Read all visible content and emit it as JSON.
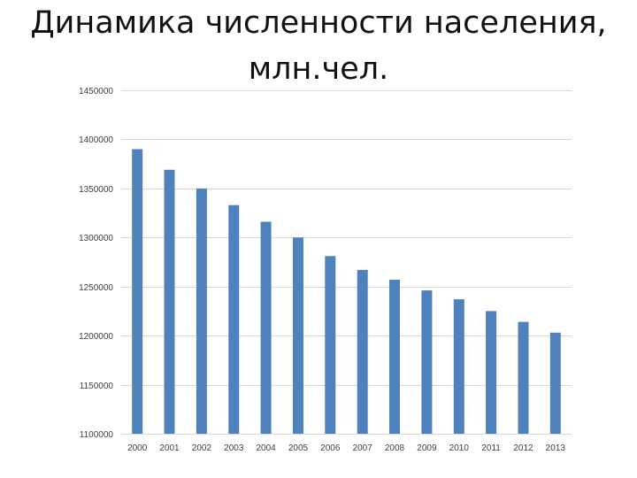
{
  "slide": {
    "title_line1": "Динамика численности населения,",
    "title_line2": "млн.чел."
  },
  "colors": {
    "bar": "#4f81bd",
    "grid": "#d9d9d9",
    "text": "#404040"
  },
  "chart_data": {
    "type": "bar",
    "title": "Динамика численности населения, млн.чел.",
    "xlabel": "",
    "ylabel": "",
    "categories": [
      "2000",
      "2001",
      "2002",
      "2003",
      "2004",
      "2005",
      "2006",
      "2007",
      "2008",
      "2009",
      "2010",
      "2011",
      "2012",
      "2013"
    ],
    "series": [
      {
        "values": [
          1390000,
          1369000,
          1350000,
          1333000,
          1316000,
          1300000,
          1281000,
          1267000,
          1257000,
          1246000,
          1237000,
          1225000,
          1214000,
          1203000
        ]
      }
    ],
    "ylim": [
      1100000,
      1450000
    ],
    "yticks": [
      1100000,
      1150000,
      1200000,
      1250000,
      1300000,
      1350000,
      1400000,
      1450000
    ],
    "ytick_labels": [
      "1100000",
      "1150000",
      "1200000",
      "1250000",
      "1300000",
      "1350000",
      "1400000",
      "1450000"
    ],
    "grid": true,
    "legend": "none"
  }
}
